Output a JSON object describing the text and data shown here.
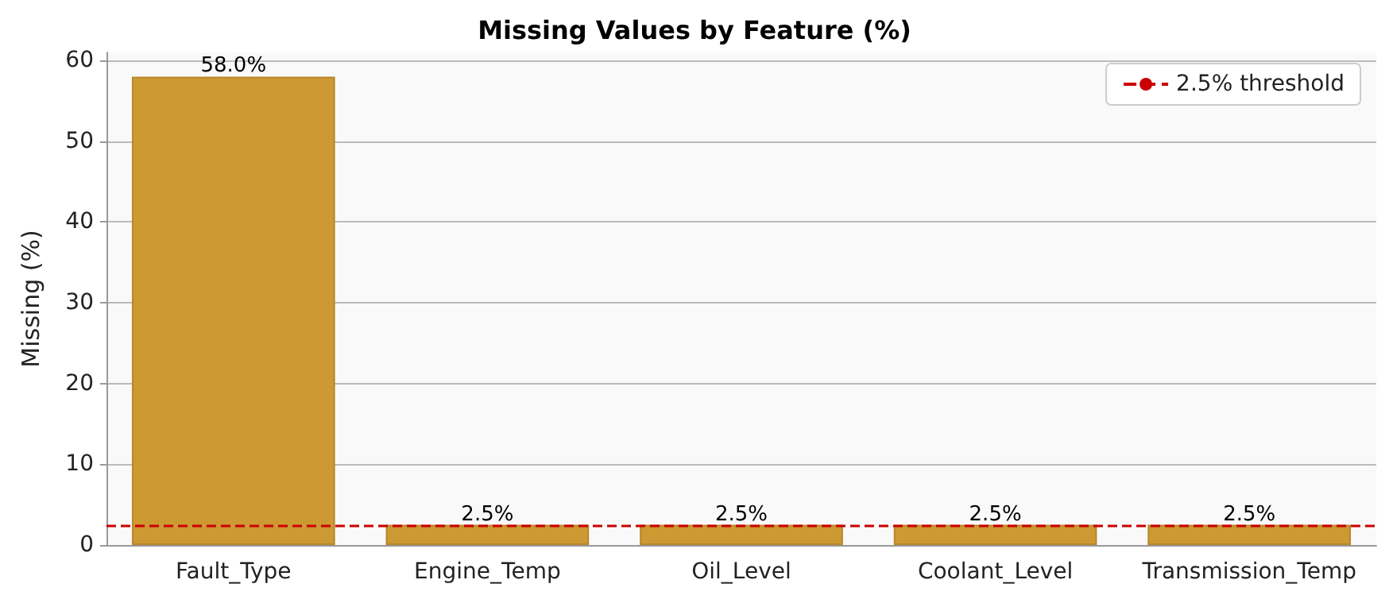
{
  "chart_data": {
    "type": "bar",
    "title": "Missing Values by Feature (%)",
    "ylabel": "Missing (%)",
    "categories": [
      "Fault_Type",
      "Engine_Temp",
      "Oil_Level",
      "Coolant_Level",
      "Transmission_Temp"
    ],
    "values": [
      58.0,
      2.5,
      2.5,
      2.5,
      2.5
    ],
    "color": "#cc9933",
    "value_labels": [
      "58.0%",
      "2.5%",
      "2.5%",
      "2.5%",
      "2.5%"
    ],
    "ylim": [
      0,
      61
    ],
    "yticks": [
      0,
      10,
      20,
      30,
      40,
      50,
      60
    ],
    "grid": "y",
    "legend": "top right",
    "ref_lines": [
      {
        "axis": "y",
        "value": 2.5,
        "label": "2.5% threshold",
        "color": "#cc0000",
        "line_style": "dashed"
      }
    ]
  }
}
